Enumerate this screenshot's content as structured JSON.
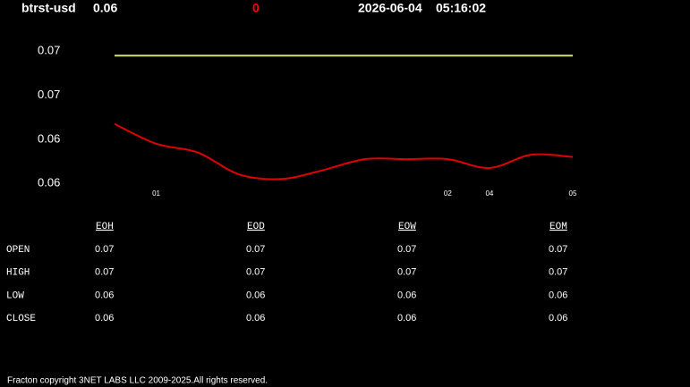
{
  "header": {
    "symbol": "btrst-usd",
    "price": "0.06",
    "change": "0",
    "date": "2026-06-04",
    "time": "05:16:02"
  },
  "chart_data": {
    "type": "line",
    "categories": [
      null,
      "01",
      null,
      null,
      null,
      null,
      null,
      null,
      "02",
      "04",
      null,
      "05"
    ],
    "series": [
      {
        "color": "#d4e07c",
        "values": [
          0.0678,
          0.0678,
          0.0678,
          0.0678,
          0.0678,
          0.0678,
          0.0678,
          0.0678,
          0.0678,
          0.0678,
          0.0678,
          0.0678
        ]
      },
      {
        "color": "#e00000",
        "values": [
          0.0647,
          0.0638,
          0.0634,
          0.0624,
          0.0622,
          0.0626,
          0.0631,
          0.0631,
          0.0631,
          0.0627,
          0.0633,
          0.0632
        ]
      }
    ],
    "ylim": [
      0.0614,
      0.0687
    ],
    "yticks": [
      {
        "value": 0.068,
        "label": "0.07"
      },
      {
        "value": 0.066,
        "label": "0.07"
      },
      {
        "value": 0.064,
        "label": "0.06"
      },
      {
        "value": 0.062,
        "label": "0.06"
      }
    ],
    "grid": false
  },
  "table": {
    "columns": [
      "EOH",
      "EOD",
      "EOW",
      "EOM"
    ],
    "rows": [
      {
        "label": "OPEN",
        "values": [
          "0.07",
          "0.07",
          "0.07",
          "0.07"
        ]
      },
      {
        "label": "HIGH",
        "values": [
          "0.07",
          "0.07",
          "0.07",
          "0.07"
        ]
      },
      {
        "label": "LOW",
        "values": [
          "0.06",
          "0.06",
          "0.06",
          "0.06"
        ]
      },
      {
        "label": "CLOSE",
        "values": [
          "0.06",
          "0.06",
          "0.06",
          "0.06"
        ]
      }
    ]
  },
  "footer": "Fracton copyright 3NET LABS LLC 2009-2025.All rights reserved."
}
